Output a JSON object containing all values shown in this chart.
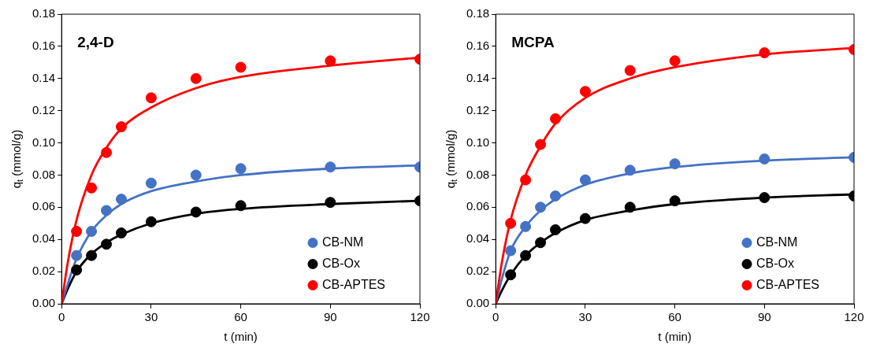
{
  "chart_data": [
    {
      "type": "scatter",
      "title": "2,4-D",
      "xlabel": "t (min)",
      "ylabel": "q$_{t}$ (mmol/g)",
      "x": [
        5,
        10,
        15,
        20,
        30,
        45,
        60,
        90,
        120
      ],
      "xlim": [
        0,
        120
      ],
      "xticks": [
        0,
        30,
        60,
        90,
        120
      ],
      "ylim": [
        0,
        0.18
      ],
      "yticks": [
        {
          "value": 0,
          "label": "0.00"
        },
        {
          "value": 0.02,
          "label": "0.02"
        },
        {
          "value": 0.04,
          "label": "0.04"
        },
        {
          "value": 0.06,
          "label": "0.06"
        },
        {
          "value": 0.08,
          "label": "0.08"
        },
        {
          "value": 0.1,
          "label": "0.10"
        },
        {
          "value": 0.12,
          "label": "0.12"
        },
        {
          "value": 0.14,
          "label": "0.14"
        },
        {
          "value": 0.16,
          "label": "0.16"
        },
        {
          "value": 0.18,
          "label": "0.18"
        }
      ],
      "grid": false,
      "legend": "bottom right",
      "marker": "circle",
      "series": [
        {
          "type": "line",
          "color": "#ff0000",
          "marker": "none",
          "line_style": "solid",
          "x": [
            0,
            2,
            5,
            10,
            15,
            20,
            30,
            45,
            60,
            90,
            120
          ],
          "values": [
            0,
            0.025,
            0.052,
            0.08,
            0.097,
            0.109,
            0.122,
            0.134,
            0.141,
            0.148,
            0.153
          ]
        },
        {
          "type": "line",
          "color": "#4472c4",
          "marker": "none",
          "line_style": "solid",
          "x": [
            0,
            2,
            5,
            10,
            15,
            20,
            30,
            45,
            60,
            90,
            120
          ],
          "values": [
            0,
            0.012,
            0.028,
            0.045,
            0.055,
            0.062,
            0.07,
            0.076,
            0.08,
            0.084,
            0.086
          ]
        },
        {
          "type": "line",
          "color": "#000000",
          "marker": "none",
          "line_style": "solid",
          "x": [
            0,
            2,
            5,
            10,
            15,
            20,
            30,
            45,
            60,
            90,
            120
          ],
          "values": [
            0,
            0.009,
            0.02,
            0.031,
            0.038,
            0.043,
            0.05,
            0.056,
            0.059,
            0.062,
            0.064
          ]
        },
        {
          "name": "CB-NM",
          "color": "#4472c4",
          "values": [
            0.03,
            0.045,
            0.058,
            0.065,
            0.075,
            0.08,
            0.084,
            0.085,
            0.085
          ]
        },
        {
          "name": "CB-Ox",
          "color": "#000000",
          "values": [
            0.021,
            0.03,
            0.037,
            0.044,
            0.051,
            0.057,
            0.061,
            0.063,
            0.064
          ]
        },
        {
          "name": "CB-APTES",
          "color": "#ff0000",
          "values": [
            0.045,
            0.072,
            0.094,
            0.11,
            0.128,
            0.14,
            0.147,
            0.151,
            0.152
          ]
        }
      ]
    },
    {
      "type": "scatter",
      "title": "MCPA",
      "xlabel": "t (min)",
      "ylabel": "q$_{t}$ (mmol/g)",
      "x": [
        5,
        10,
        15,
        20,
        30,
        45,
        60,
        90,
        120
      ],
      "xlim": [
        0,
        120
      ],
      "xticks": [
        0,
        30,
        60,
        90,
        120
      ],
      "ylim": [
        0,
        0.18
      ],
      "yticks": [
        {
          "value": 0,
          "label": "0.00"
        },
        {
          "value": 0.02,
          "label": "0.02"
        },
        {
          "value": 0.04,
          "label": "0.04"
        },
        {
          "value": 0.06,
          "label": "0.06"
        },
        {
          "value": 0.08,
          "label": "0.08"
        },
        {
          "value": 0.1,
          "label": "0.10"
        },
        {
          "value": 0.12,
          "label": "0.12"
        },
        {
          "value": 0.14,
          "label": "0.14"
        },
        {
          "value": 0.16,
          "label": "0.16"
        },
        {
          "value": 0.18,
          "label": "0.18"
        }
      ],
      "grid": false,
      "legend": "bottom right",
      "marker": "circle",
      "series": [
        {
          "type": "line",
          "color": "#ff0000",
          "marker": "none",
          "line_style": "solid",
          "x": [
            0,
            2,
            5,
            10,
            15,
            20,
            30,
            45,
            60,
            90,
            120
          ],
          "values": [
            0,
            0.025,
            0.052,
            0.08,
            0.098,
            0.112,
            0.128,
            0.14,
            0.147,
            0.155,
            0.159
          ]
        },
        {
          "type": "line",
          "color": "#4472c4",
          "marker": "none",
          "line_style": "solid",
          "x": [
            0,
            2,
            5,
            10,
            15,
            20,
            30,
            45,
            60,
            90,
            120
          ],
          "values": [
            0,
            0.015,
            0.033,
            0.048,
            0.058,
            0.065,
            0.074,
            0.081,
            0.085,
            0.089,
            0.091
          ]
        },
        {
          "type": "line",
          "color": "#000000",
          "marker": "none",
          "line_style": "solid",
          "x": [
            0,
            2,
            5,
            10,
            15,
            20,
            30,
            45,
            60,
            90,
            120
          ],
          "values": [
            0,
            0.008,
            0.018,
            0.03,
            0.038,
            0.044,
            0.052,
            0.058,
            0.062,
            0.066,
            0.068
          ]
        },
        {
          "name": "CB-NM",
          "color": "#4472c4",
          "values": [
            0.033,
            0.048,
            0.06,
            0.067,
            0.077,
            0.083,
            0.087,
            0.09,
            0.091
          ]
        },
        {
          "name": "CB-Ox",
          "color": "#000000",
          "values": [
            0.018,
            0.03,
            0.038,
            0.046,
            0.053,
            0.06,
            0.064,
            0.066,
            0.067
          ]
        },
        {
          "name": "CB-APTES",
          "color": "#ff0000",
          "values": [
            0.05,
            0.077,
            0.099,
            0.115,
            0.132,
            0.145,
            0.151,
            0.156,
            0.158
          ]
        }
      ]
    }
  ]
}
